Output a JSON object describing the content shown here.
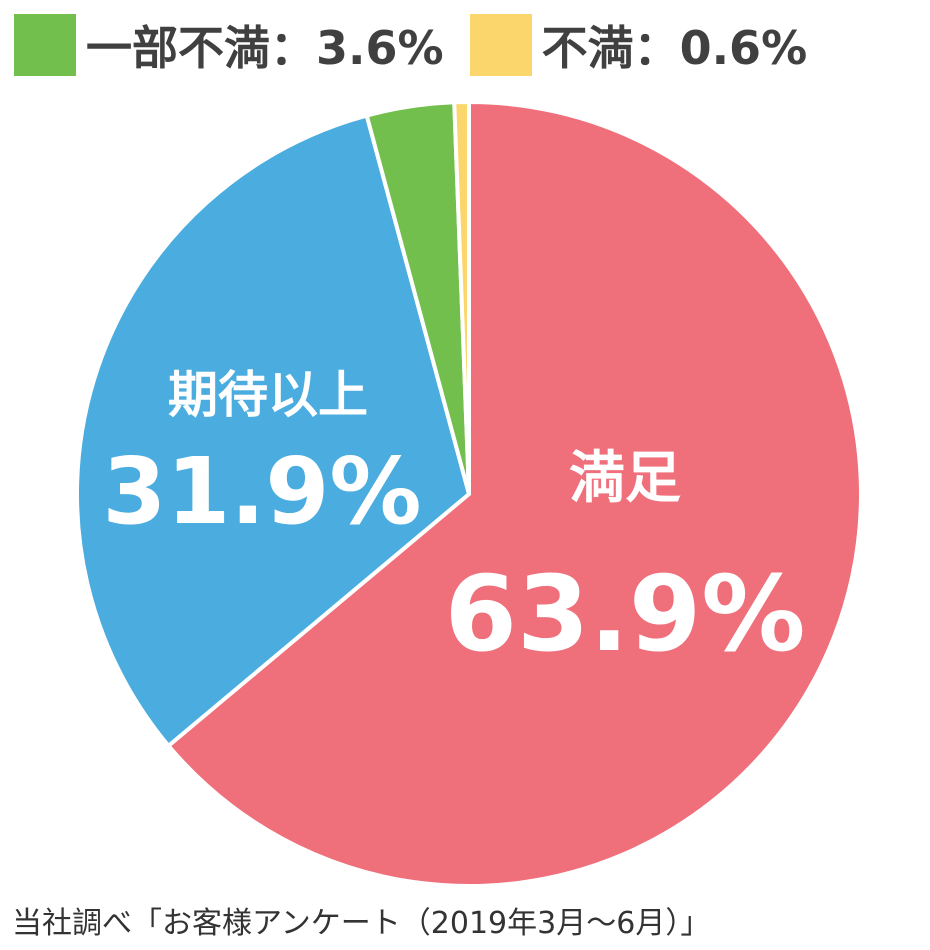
{
  "chart_data": {
    "type": "pie",
    "slices": [
      {
        "label": "満足",
        "value": 63.9,
        "value_label": "63.9%",
        "color": "#EF6F7B"
      },
      {
        "label": "期待以上",
        "value": 31.9,
        "value_label": "31.9%",
        "color": "#4AACDF"
      },
      {
        "label": "一部不満",
        "value": 3.6,
        "value_label": "3.6%",
        "color": "#72BF4E"
      },
      {
        "label": "不満",
        "value": 0.6,
        "value_label": "0.6%",
        "color": "#FBD66C"
      }
    ],
    "start": "12 o'clock",
    "direction": "clockwise",
    "legend": {
      "placement": "top-left",
      "items": [
        {
          "text": "一部不満：3.6%",
          "color": "#72BF4E"
        },
        {
          "text": "不満：0.6%",
          "color": "#FBD66C"
        }
      ]
    }
  },
  "footnote": "当社調べ「お客様アンケート（2019年3月〜6月）」"
}
